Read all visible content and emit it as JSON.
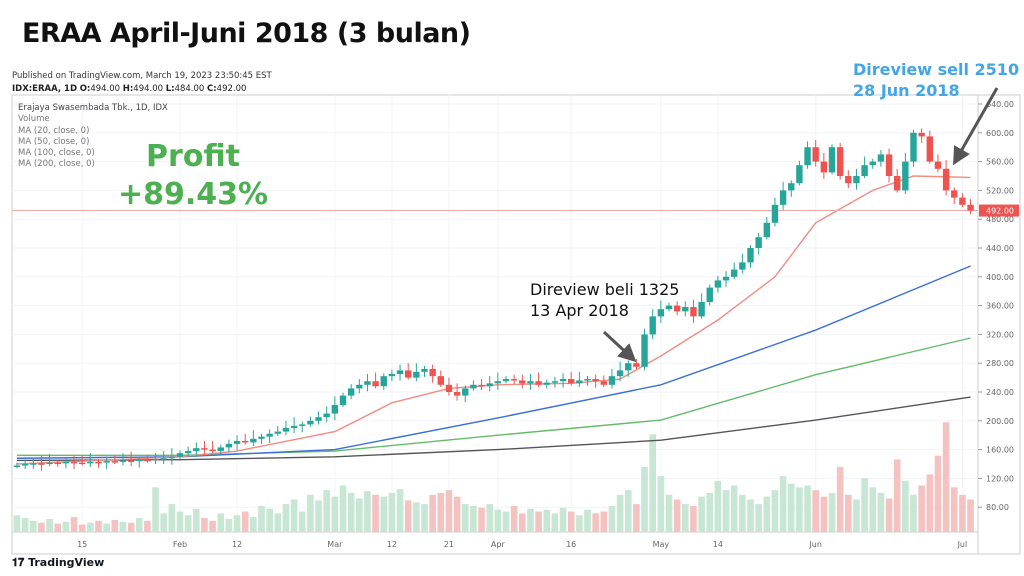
{
  "chart_data": {
    "type": "candlestick",
    "title": "ERAA April-Juni 2018 (3 bulan)",
    "published": "Published on TradingView.com, March 19, 2023 23:50:45 EST",
    "symbol_line": {
      "symbol": "IDX:ERAA, 1D",
      "o_label": "O:",
      "o": "494.00",
      "h_label": "H:",
      "h": "494.00",
      "l_label": "L:",
      "l": "484.00",
      "c_label": "C:",
      "c": "492.00"
    },
    "legend": [
      "Erajaya Swasembada Tbk., 1D, IDX",
      "Volume",
      "MA (20, close, 0)",
      "MA (50, close, 0)",
      "MA (100, close, 0)",
      "MA (200, close, 0)"
    ],
    "y_ticks": [
      "640.00",
      "600.00",
      "560.00",
      "520.00",
      "480.00",
      "440.00",
      "400.00",
      "360.00",
      "320.00",
      "280.00",
      "240.00",
      "200.00",
      "160.00",
      "120.00",
      "80.00"
    ],
    "ylim": [
      60,
      640
    ],
    "last_price_label": "492.00",
    "last_price": 492,
    "x_ticks": [
      "15",
      "Feb",
      "12",
      "Mar",
      "12",
      "21",
      "Apr",
      "16",
      "May",
      "14",
      "Jun",
      "Jul"
    ],
    "x_tick_index": [
      8,
      20,
      27,
      39,
      46,
      53,
      59,
      68,
      79,
      86,
      98,
      116
    ],
    "closes": [
      138,
      140,
      141,
      140,
      142,
      141,
      143,
      142,
      141,
      143,
      142,
      144,
      143,
      145,
      144,
      146,
      145,
      147,
      148,
      150,
      155,
      158,
      162,
      160,
      158,
      163,
      168,
      172,
      170,
      175,
      178,
      182,
      185,
      190,
      193,
      195,
      200,
      205,
      210,
      222,
      235,
      245,
      250,
      255,
      248,
      262,
      265,
      270,
      260,
      268,
      272,
      262,
      250,
      240,
      235,
      245,
      250,
      248,
      252,
      255,
      258,
      256,
      252,
      255,
      250,
      253,
      255,
      258,
      252,
      256,
      258,
      255,
      250,
      262,
      270,
      280,
      275,
      320,
      345,
      355,
      360,
      352,
      358,
      345,
      365,
      385,
      395,
      400,
      410,
      420,
      440,
      455,
      475,
      500,
      520,
      530,
      555,
      580,
      560,
      545,
      580,
      540,
      530,
      540,
      555,
      560,
      570,
      540,
      520,
      560,
      600,
      595,
      560,
      550,
      520,
      510,
      500,
      492
    ],
    "volumes": [
      18,
      15,
      12,
      10,
      14,
      9,
      11,
      16,
      8,
      10,
      12,
      9,
      13,
      11,
      10,
      15,
      12,
      48,
      20,
      30,
      22,
      18,
      25,
      15,
      12,
      20,
      14,
      18,
      22,
      16,
      28,
      25,
      20,
      30,
      35,
      22,
      40,
      34,
      45,
      38,
      50,
      42,
      36,
      44,
      40,
      38,
      42,
      46,
      34,
      32,
      30,
      40,
      42,
      45,
      38,
      30,
      28,
      26,
      30,
      24,
      22,
      28,
      20,
      25,
      22,
      24,
      20,
      26,
      22,
      18,
      24,
      20,
      22,
      28,
      40,
      45,
      30,
      70,
      105,
      60,
      40,
      35,
      30,
      28,
      38,
      42,
      55,
      45,
      50,
      40,
      35,
      30,
      38,
      45,
      60,
      52,
      48,
      50,
      45,
      38,
      42,
      70,
      40,
      35,
      58,
      48,
      42,
      36,
      78,
      55,
      40,
      50,
      62,
      82,
      118,
      48,
      40,
      35
    ],
    "ma20": [
      [
        0,
        140
      ],
      [
        20,
        150
      ],
      [
        27,
        158
      ],
      [
        39,
        185
      ],
      [
        46,
        225
      ],
      [
        53,
        245
      ],
      [
        59,
        250
      ],
      [
        68,
        252
      ],
      [
        74,
        258
      ],
      [
        79,
        290
      ],
      [
        86,
        340
      ],
      [
        93,
        400
      ],
      [
        98,
        475
      ],
      [
        105,
        520
      ],
      [
        110,
        540
      ],
      [
        117,
        538
      ]
    ],
    "ma50": [
      [
        0,
        148
      ],
      [
        20,
        150
      ],
      [
        39,
        160
      ],
      [
        59,
        204
      ],
      [
        79,
        250
      ],
      [
        98,
        326
      ],
      [
        117,
        415
      ]
    ],
    "ma100": [
      [
        0,
        152
      ],
      [
        20,
        152
      ],
      [
        39,
        158
      ],
      [
        59,
        180
      ],
      [
        79,
        201
      ],
      [
        98,
        264
      ],
      [
        117,
        315
      ]
    ],
    "ma200": [
      [
        0,
        145
      ],
      [
        20,
        146
      ],
      [
        39,
        150
      ],
      [
        59,
        160
      ],
      [
        79,
        173
      ],
      [
        98,
        201
      ],
      [
        117,
        233
      ]
    ],
    "colors": {
      "up": "#26a69a",
      "down": "#ef5350",
      "ma20": "#f28b82",
      "ma50": "#3a6fd8",
      "ma100": "#66bb6a",
      "ma200": "#555555",
      "vol_up": "#c8e6d4",
      "vol_down": "#f5c2c2"
    },
    "annotations": {
      "profit": [
        "Profit",
        "+89.43%"
      ],
      "buy": [
        "Direview beli 1325",
        "13 Apr 2018"
      ],
      "sell": [
        "Direview sell 2510",
        "28 Jun 2018"
      ]
    }
  },
  "brand": "TradingView"
}
